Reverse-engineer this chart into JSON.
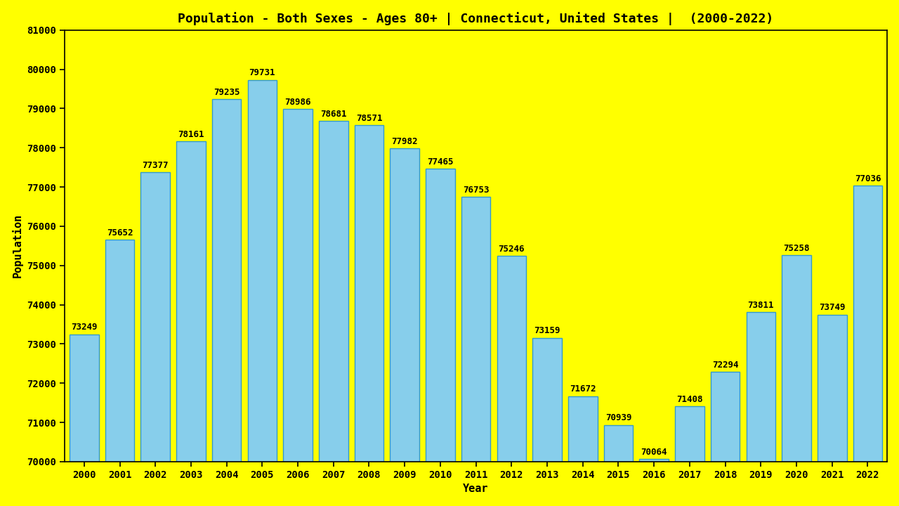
{
  "title": "Population - Both Sexes - Ages 80+ | Connecticut, United States |  (2000-2022)",
  "xlabel": "Year",
  "ylabel": "Population",
  "background_color": "#FFFF00",
  "bar_color": "#87CEEB",
  "bar_edge_color": "#3399CC",
  "years": [
    2000,
    2001,
    2002,
    2003,
    2004,
    2005,
    2006,
    2007,
    2008,
    2009,
    2010,
    2011,
    2012,
    2013,
    2014,
    2015,
    2016,
    2017,
    2018,
    2019,
    2020,
    2021,
    2022
  ],
  "values": [
    73249,
    75652,
    77377,
    78161,
    79235,
    79731,
    78986,
    78681,
    78571,
    77982,
    77465,
    76753,
    75246,
    73159,
    71672,
    70939,
    70064,
    71408,
    72294,
    73811,
    75258,
    73749,
    77036
  ],
  "ylim": [
    70000,
    81000
  ],
  "yticks": [
    70000,
    71000,
    72000,
    73000,
    74000,
    75000,
    76000,
    77000,
    78000,
    79000,
    80000,
    81000
  ],
  "title_color": "#000000",
  "label_color": "#000000",
  "tick_color": "#000000",
  "annotation_color": "#000000",
  "title_fontsize": 13,
  "label_fontsize": 11,
  "tick_fontsize": 10,
  "annotation_fontsize": 9
}
